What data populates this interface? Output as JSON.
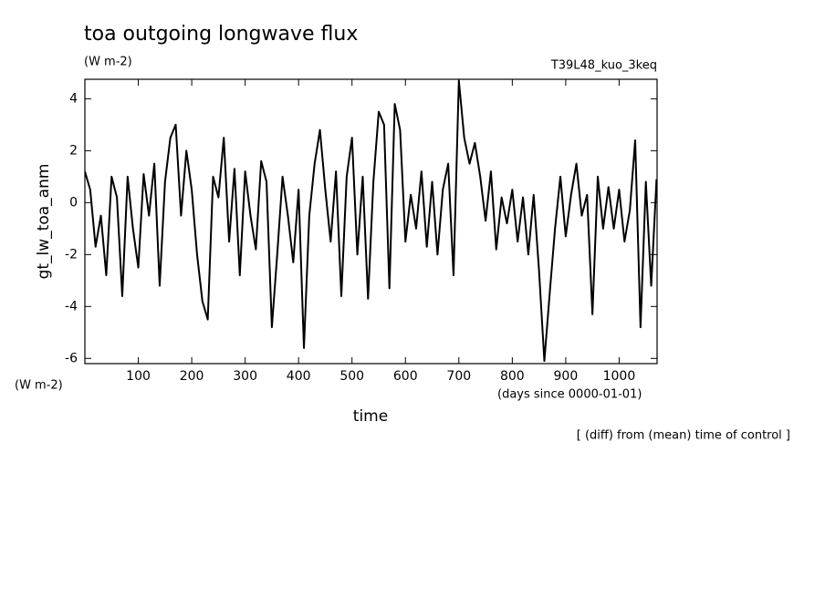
{
  "chart_data": {
    "type": "line",
    "title": "toa outgoing longwave flux",
    "subtitle": "(W m-2)",
    "run_label": "T39L48_kuo_3keq",
    "y_label": "gt_lw_toa_anm",
    "y_units": "(W m-2)",
    "x_label": "time",
    "x_units": "(days since 0000-01-01)",
    "annotation": "[ (diff) from (mean) time of control ]",
    "xlim": [
      0,
      1071
    ],
    "ylim": [
      -6.2,
      4.75
    ],
    "xticks": [
      100,
      200,
      300,
      400,
      500,
      600,
      700,
      800,
      900,
      1000
    ],
    "yticks": [
      -6,
      -4,
      -2,
      0,
      2,
      4
    ],
    "series": [
      {
        "color": "#000000",
        "x": [
          0,
          10,
          20,
          30,
          40,
          50,
          60,
          70,
          80,
          90,
          100,
          110,
          120,
          130,
          140,
          150,
          160,
          170,
          180,
          190,
          200,
          210,
          220,
          230,
          240,
          250,
          260,
          270,
          280,
          290,
          300,
          310,
          320,
          330,
          340,
          350,
          360,
          370,
          380,
          390,
          400,
          410,
          420,
          430,
          440,
          450,
          460,
          470,
          480,
          490,
          500,
          510,
          520,
          530,
          540,
          550,
          560,
          570,
          580,
          590,
          600,
          610,
          620,
          630,
          640,
          650,
          660,
          670,
          680,
          690,
          700,
          710,
          720,
          730,
          740,
          750,
          760,
          770,
          780,
          790,
          800,
          810,
          820,
          830,
          840,
          850,
          860,
          870,
          880,
          890,
          900,
          910,
          920,
          930,
          940,
          950,
          960,
          970,
          980,
          990,
          1000,
          1010,
          1020,
          1030,
          1040,
          1050,
          1060,
          1070
        ],
        "values": [
          1.2,
          0.5,
          -1.7,
          -0.5,
          -2.8,
          1.0,
          0.2,
          -3.6,
          1.0,
          -1.0,
          -2.5,
          1.1,
          -0.5,
          1.5,
          -3.2,
          0.8,
          2.5,
          3.0,
          -0.5,
          2.0,
          0.5,
          -2.0,
          -3.8,
          -4.5,
          1.0,
          0.2,
          2.5,
          -1.5,
          1.3,
          -2.8,
          1.2,
          -0.5,
          -1.8,
          1.6,
          0.8,
          -4.8,
          -2.0,
          1.0,
          -0.5,
          -2.3,
          0.5,
          -5.6,
          -0.5,
          1.5,
          2.8,
          0.5,
          -1.5,
          1.2,
          -3.6,
          1.0,
          2.5,
          -2.0,
          1.0,
          -3.7,
          0.8,
          3.5,
          3.0,
          -3.3,
          3.8,
          2.8,
          -1.5,
          0.3,
          -1.0,
          1.2,
          -1.7,
          0.8,
          -2.0,
          0.5,
          1.5,
          -2.8,
          4.7,
          2.5,
          1.5,
          2.3,
          1.0,
          -0.7,
          1.2,
          -1.8,
          0.2,
          -0.8,
          0.5,
          -1.5,
          0.2,
          -2.0,
          0.3,
          -2.6,
          -6.1,
          -3.5,
          -1.0,
          1.0,
          -1.3,
          0.3,
          1.5,
          -0.5,
          0.3,
          -4.3,
          1.0,
          -1.0,
          0.6,
          -1.0,
          0.5,
          -1.5,
          -0.3,
          2.4,
          -4.8,
          0.8,
          -3.2,
          0.9
        ]
      }
    ]
  }
}
